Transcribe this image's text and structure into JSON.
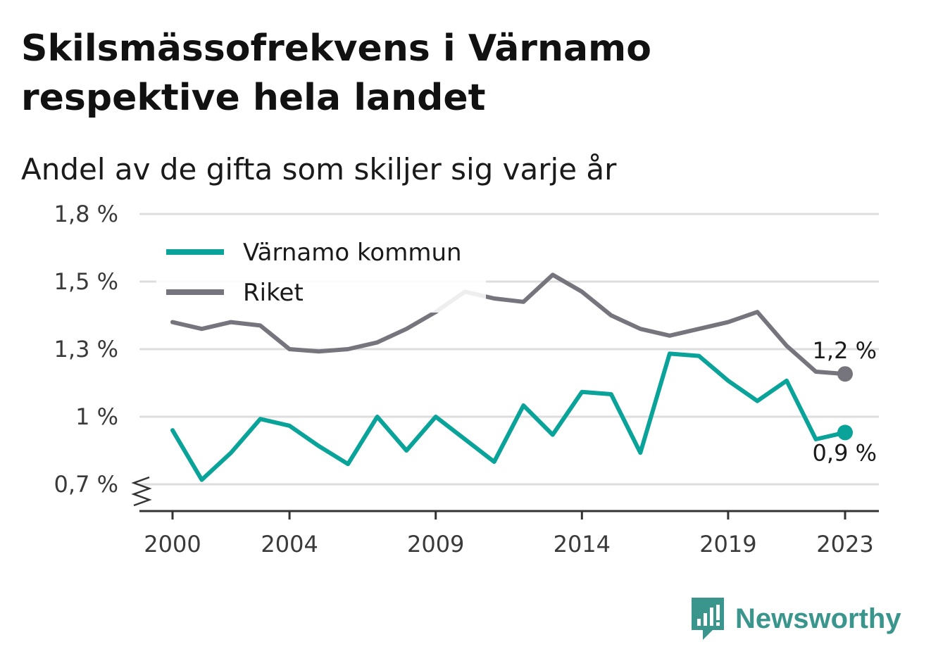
{
  "title": "Skilsmässofrekvens i Värnamo respektive hela landet",
  "subtitle": "Andel av de gifta som skiljer sig varje år",
  "brand": {
    "name": "Newsworthy",
    "icon": "newsworthy-logo-icon"
  },
  "colors": {
    "varnamo": "#0aa39a",
    "riket": "#76757d",
    "grid": "#dedede",
    "axis": "#333333",
    "brand": "#3a958c"
  },
  "chart_data": {
    "type": "line",
    "x": [
      2000,
      2001,
      2002,
      2003,
      2004,
      2005,
      2006,
      2007,
      2008,
      2009,
      2010,
      2011,
      2012,
      2013,
      2014,
      2015,
      2016,
      2017,
      2018,
      2019,
      2020,
      2021,
      2022,
      2023
    ],
    "x_ticks": [
      {
        "value": 2000,
        "label": "2000"
      },
      {
        "value": 2004,
        "label": "2004"
      },
      {
        "value": 2009,
        "label": "2009"
      },
      {
        "value": 2014,
        "label": "2014"
      },
      {
        "value": 2019,
        "label": "2019"
      },
      {
        "value": 2023,
        "label": "2023"
      }
    ],
    "y_ticks": [
      {
        "value": 0.7,
        "label": "0,7 %"
      },
      {
        "value": 1.0,
        "label": "1 %"
      },
      {
        "value": 1.3,
        "label": "1,3 %"
      },
      {
        "value": 1.5,
        "label": "1,5 %"
      },
      {
        "value": 1.8,
        "label": "1,8 %"
      }
    ],
    "ylim": [
      0.7,
      1.8
    ],
    "xlim": [
      2000,
      2023
    ],
    "grid": true,
    "axis_break": true,
    "legend_position": "top-left",
    "series": [
      {
        "key": "varnamo",
        "name": "Värnamo kommun",
        "values": [
          0.94,
          0.72,
          0.84,
          0.99,
          0.96,
          0.87,
          0.79,
          1.0,
          0.85,
          1.0,
          0.9,
          0.8,
          1.05,
          0.92,
          1.11,
          1.1,
          0.84,
          1.28,
          1.27,
          1.16,
          1.07,
          1.16,
          0.9,
          0.93
        ],
        "end_label": "0,9 %"
      },
      {
        "key": "riket",
        "name": "Riket",
        "values": [
          1.38,
          1.36,
          1.38,
          1.37,
          1.3,
          1.29,
          1.3,
          1.32,
          1.36,
          1.41,
          1.47,
          1.45,
          1.44,
          1.53,
          1.47,
          1.4,
          1.36,
          1.34,
          1.36,
          1.38,
          1.41,
          1.31,
          1.2,
          1.19
        ],
        "end_label": "1,2 %"
      }
    ]
  }
}
